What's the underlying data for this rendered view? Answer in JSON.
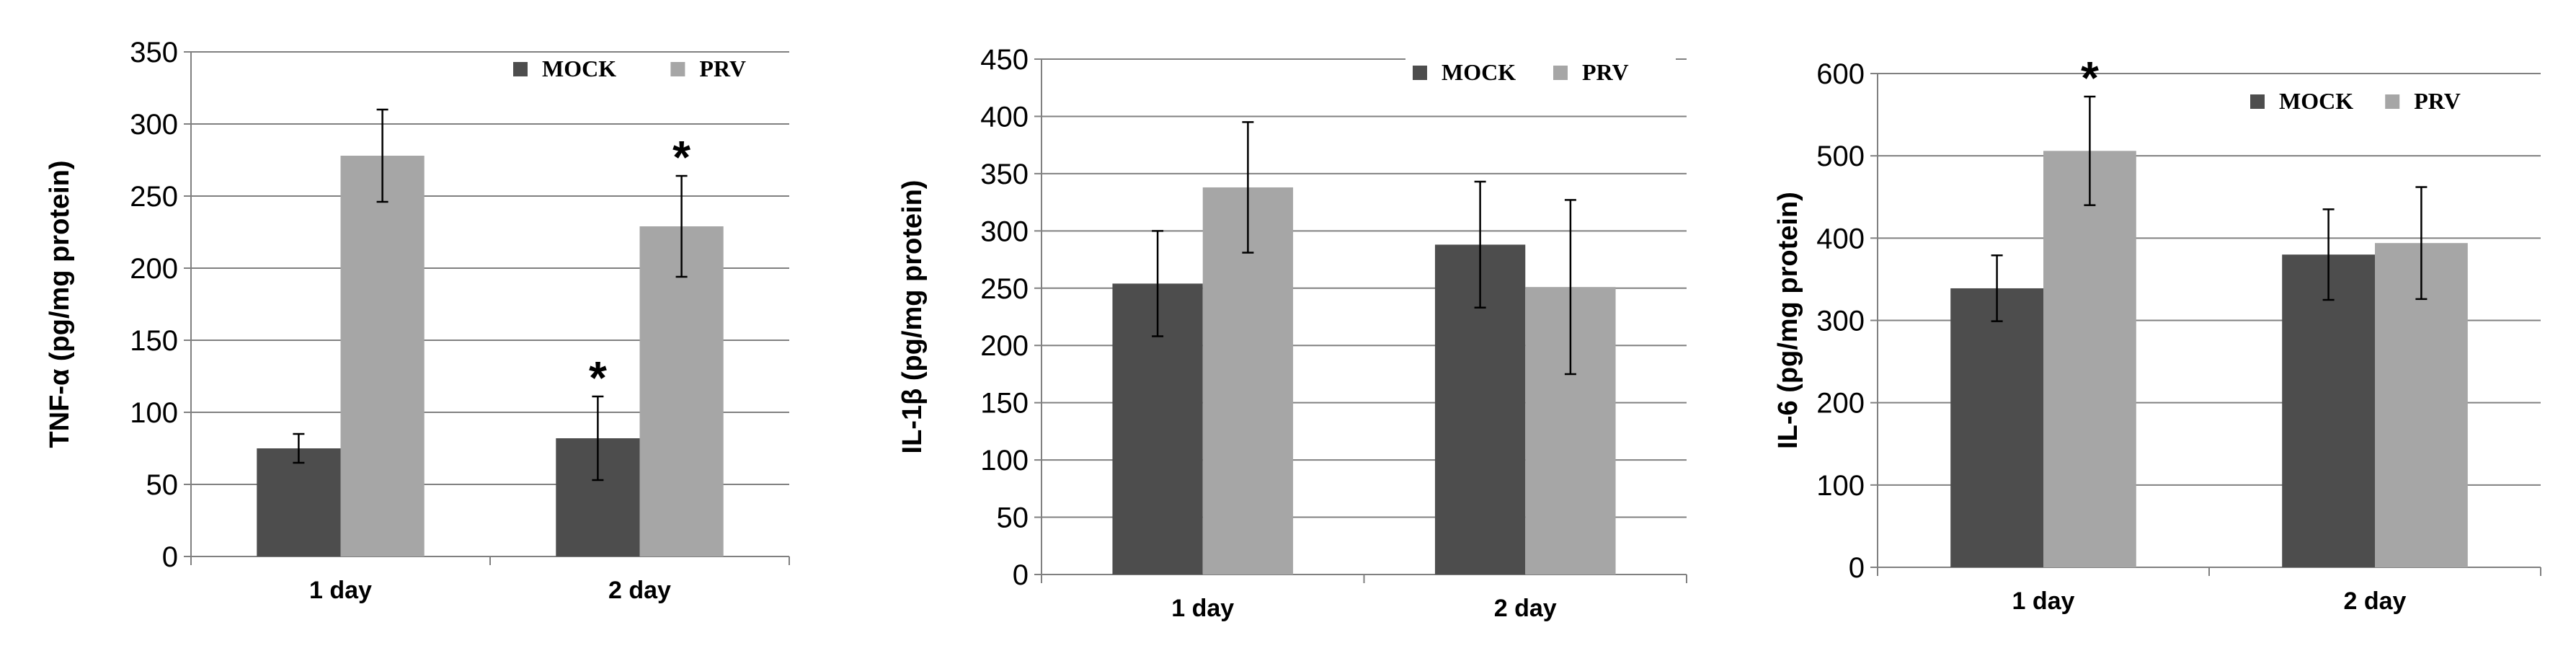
{
  "chart_data": [
    {
      "type": "bar",
      "ylabel": "TNF-α (pg/mg protein)",
      "ylim": [
        0,
        350
      ],
      "ystep": 50,
      "yticks": [
        "0",
        "50",
        "100",
        "150",
        "200",
        "250",
        "300",
        "350"
      ],
      "categories": [
        "1 day",
        "2 day"
      ],
      "series": [
        {
          "name": "MOCK",
          "values": [
            75,
            82
          ],
          "errors": [
            10,
            29
          ]
        },
        {
          "name": "PRV",
          "values": [
            278,
            229
          ],
          "errors": [
            32,
            35
          ]
        }
      ],
      "significance": [
        [
          false,
          true
        ],
        [
          false,
          true
        ]
      ],
      "legend": "top-right"
    },
    {
      "type": "bar",
      "ylabel": "IL-1β (pg/mg protein)",
      "ylim": [
        0,
        450
      ],
      "ystep": 50,
      "yticks": [
        "0",
        "50",
        "100",
        "150",
        "200",
        "250",
        "300",
        "350",
        "400",
        "450"
      ],
      "categories": [
        "1 day",
        "2 day"
      ],
      "series": [
        {
          "name": "MOCK",
          "values": [
            254,
            288
          ],
          "errors": [
            46,
            55
          ]
        },
        {
          "name": "PRV",
          "values": [
            338,
            251
          ],
          "errors": [
            57,
            76
          ]
        }
      ],
      "significance": [
        [
          false,
          false
        ],
        [
          false,
          false
        ]
      ],
      "legend": "top-right"
    },
    {
      "type": "bar",
      "ylabel": "IL-6  (pg/mg protein)",
      "ylim": [
        0,
        600
      ],
      "ystep": 100,
      "yticks": [
        "0",
        "100",
        "200",
        "300",
        "400",
        "500",
        "600"
      ],
      "categories": [
        "1 day",
        "2 day"
      ],
      "series": [
        {
          "name": "MOCK",
          "values": [
            339,
            380
          ],
          "errors": [
            40,
            55
          ]
        },
        {
          "name": "PRV",
          "values": [
            506,
            394
          ],
          "errors": [
            66,
            68
          ]
        }
      ],
      "significance": [
        [
          false,
          false
        ],
        [
          true,
          false
        ]
      ],
      "legend": "top-right"
    }
  ],
  "significance_marker": "*",
  "colors": {
    "MOCK": "#4d4d4d",
    "PRV": "#a6a6a6",
    "axis": "#808080",
    "grid": "#808080",
    "error": "#000000"
  }
}
